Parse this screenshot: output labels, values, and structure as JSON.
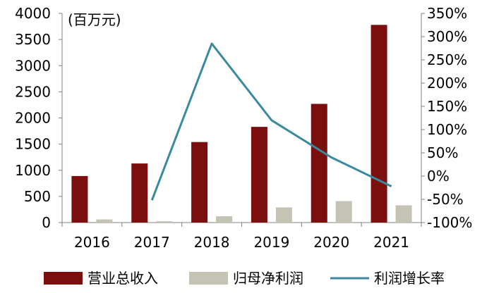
{
  "chart_data": {
    "type": "bar",
    "categories": [
      "2016",
      "2017",
      "2018",
      "2019",
      "2020",
      "2021"
    ],
    "series": [
      {
        "name": "营业总收入",
        "kind": "bar",
        "axis": "left",
        "color": "#7b0e0e",
        "values": [
          890,
          1130,
          1540,
          1830,
          2270,
          3780
        ]
      },
      {
        "name": "归母净利润",
        "kind": "bar",
        "axis": "left",
        "color": "#c5c3b4",
        "values": [
          60,
          25,
          120,
          290,
          410,
          330
        ]
      },
      {
        "name": "利润增长率",
        "kind": "line",
        "axis": "right",
        "color": "#3a8a9e",
        "values": [
          null,
          -52,
          285,
          120,
          40,
          -22
        ]
      }
    ],
    "y_left": {
      "unit": "(百万元)",
      "ylim": [
        0,
        4000
      ],
      "ticks": [
        "0",
        "500",
        "1000",
        "1500",
        "2000",
        "2500",
        "3000",
        "3500",
        "4000"
      ]
    },
    "y_right": {
      "ylim": [
        -100,
        350
      ],
      "ticks": [
        "-100%",
        "-50%",
        "0%",
        "50%",
        "100%",
        "150%",
        "200%",
        "250%",
        "300%",
        "350%"
      ]
    },
    "legend": {
      "placement": "bottom"
    },
    "grid": false
  }
}
